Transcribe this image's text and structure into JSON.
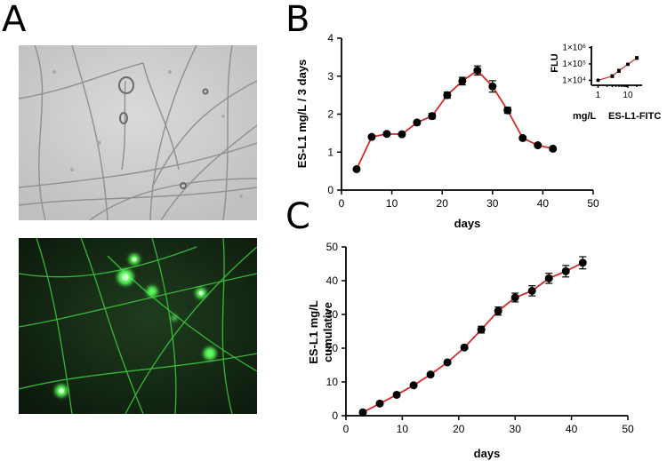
{
  "panels": {
    "a": {
      "letter": "A"
    },
    "b": {
      "letter": "B"
    },
    "c": {
      "letter": "C"
    }
  },
  "colors": {
    "line": "#d62a2a",
    "marker": "#000000",
    "fluorescence": "#3dff3d",
    "brightfield": "#cfcfcf"
  },
  "chart_data": [
    {
      "id": "panel-b-main",
      "type": "line",
      "xlabel": "days",
      "ylabel": "ES-L1 mg/L / 3 days",
      "xlim": [
        0,
        50
      ],
      "ylim": [
        0,
        4
      ],
      "xticks": [
        "0",
        "10",
        "20",
        "30",
        "40",
        "50"
      ],
      "yticks": [
        "0",
        "1",
        "2",
        "3",
        "4"
      ],
      "x": [
        3,
        6,
        9,
        12,
        15,
        18,
        21,
        24,
        27,
        30,
        33,
        36,
        39,
        42
      ],
      "y": [
        0.55,
        1.4,
        1.48,
        1.47,
        1.78,
        1.95,
        2.5,
        2.87,
        3.15,
        2.73,
        2.1,
        1.37,
        1.18,
        1.09
      ],
      "error": [
        0.03,
        0.04,
        0.04,
        0.04,
        0.05,
        0.07,
        0.08,
        0.1,
        0.12,
        0.15,
        0.08,
        0.04,
        0.04,
        0.04
      ]
    },
    {
      "id": "panel-b-inset",
      "type": "line",
      "xlabel": "mg/L",
      "xlabel2": "ES-L1-FITC",
      "ylabel": "FLU",
      "xscale": "log",
      "yscale": "log",
      "xlim": [
        0.6,
        30
      ],
      "ylim": [
        5000,
        1200000
      ],
      "xticks": [
        "1",
        "10"
      ],
      "yticks": [
        "1×10⁴",
        "1×10⁵",
        "1×10⁶"
      ],
      "x": [
        1,
        3,
        5,
        10,
        20
      ],
      "y": [
        10000,
        18000,
        38000,
        95000,
        230000
      ],
      "error": [
        0.02,
        0.08,
        0.09,
        0.05,
        0.08
      ]
    },
    {
      "id": "panel-c",
      "type": "line",
      "xlabel": "days",
      "ylabel": "ES-L1 mg/L",
      "ylabel2": "cumulative",
      "xlim": [
        0,
        50
      ],
      "ylim": [
        0,
        50
      ],
      "xticks": [
        "0",
        "10",
        "20",
        "30",
        "40",
        "50"
      ],
      "yticks": [
        "0",
        "10",
        "20",
        "30",
        "40",
        "50"
      ],
      "x": [
        3,
        6,
        9,
        12,
        15,
        18,
        21,
        24,
        27,
        30,
        33,
        36,
        39,
        42
      ],
      "y": [
        1.0,
        3.6,
        6.2,
        9.0,
        12.2,
        15.8,
        20.2,
        25.5,
        31.0,
        35.0,
        37.0,
        40.7,
        42.8,
        45.3
      ],
      "error": [
        0.2,
        0.2,
        0.3,
        0.3,
        0.4,
        0.4,
        0.5,
        1.0,
        1.2,
        1.3,
        1.5,
        1.5,
        1.7,
        1.8
      ]
    }
  ]
}
